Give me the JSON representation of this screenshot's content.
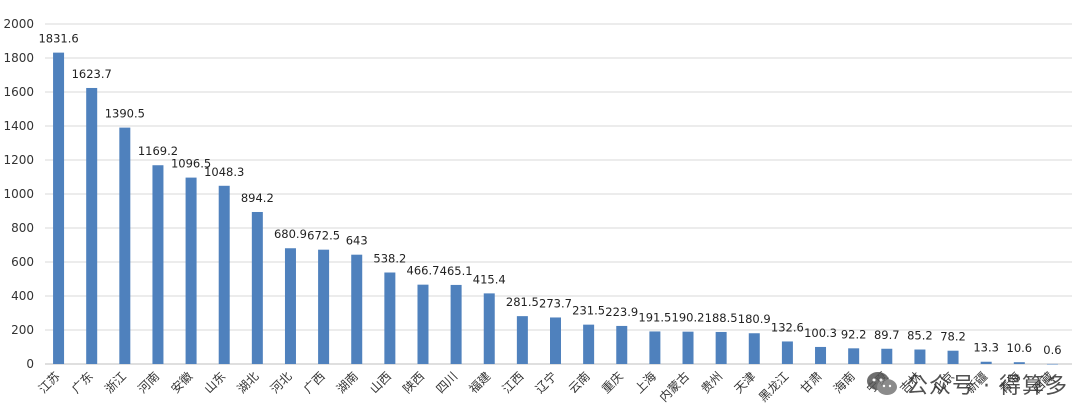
{
  "chart_data": {
    "type": "bar",
    "categories": [
      "江苏",
      "广东",
      "浙江",
      "河南",
      "安徽",
      "山东",
      "湖北",
      "河北",
      "广西",
      "湖南",
      "山西",
      "陕西",
      "四川",
      "福建",
      "江西",
      "辽宁",
      "云南",
      "重庆",
      "上海",
      "内蒙古",
      "贵州",
      "天津",
      "黑龙江",
      "甘肃",
      "海南",
      "宁夏",
      "吉林",
      "北京",
      "新疆",
      "青海",
      "西藏"
    ],
    "values": [
      1831.6,
      1623.7,
      1390.5,
      1169.2,
      1096.5,
      1048.3,
      894.2,
      680.9,
      672.5,
      643,
      538.2,
      466.7,
      465.1,
      415.4,
      281.5,
      273.7,
      231.5,
      223.9,
      191.5,
      190.2,
      188.5,
      180.9,
      132.6,
      100.3,
      92.2,
      89.7,
      85.2,
      78.2,
      13.3,
      10.6,
      0.6
    ],
    "data_labels": [
      "1831.6",
      "1623.7",
      "1390.5",
      "1169.2",
      "1096.5",
      "1048.3",
      "894.2",
      "680.9",
      "672.5",
      "643",
      "538.2",
      "466.7",
      "465.1",
      "415.4",
      "281.5",
      "273.7",
      "231.5",
      "223.9",
      "191.5",
      "190.2",
      "188.5",
      "180.9",
      "132.6",
      "100.3",
      "92.2",
      "89.7",
      "85.2",
      "78.2",
      "13.3",
      "10.6",
      "0.6"
    ],
    "ylim": [
      0,
      2000
    ],
    "yticks": [
      "0",
      "200",
      "400",
      "600",
      "800",
      "1000",
      "1200",
      "1400",
      "1600",
      "1800",
      "2000"
    ],
    "grid": true,
    "bar_color": "#4F81BD",
    "title": "",
    "xlabel": "",
    "ylabel": ""
  },
  "watermark": {
    "icon": "wechat-icon",
    "text": "公众号 · 得算多"
  }
}
